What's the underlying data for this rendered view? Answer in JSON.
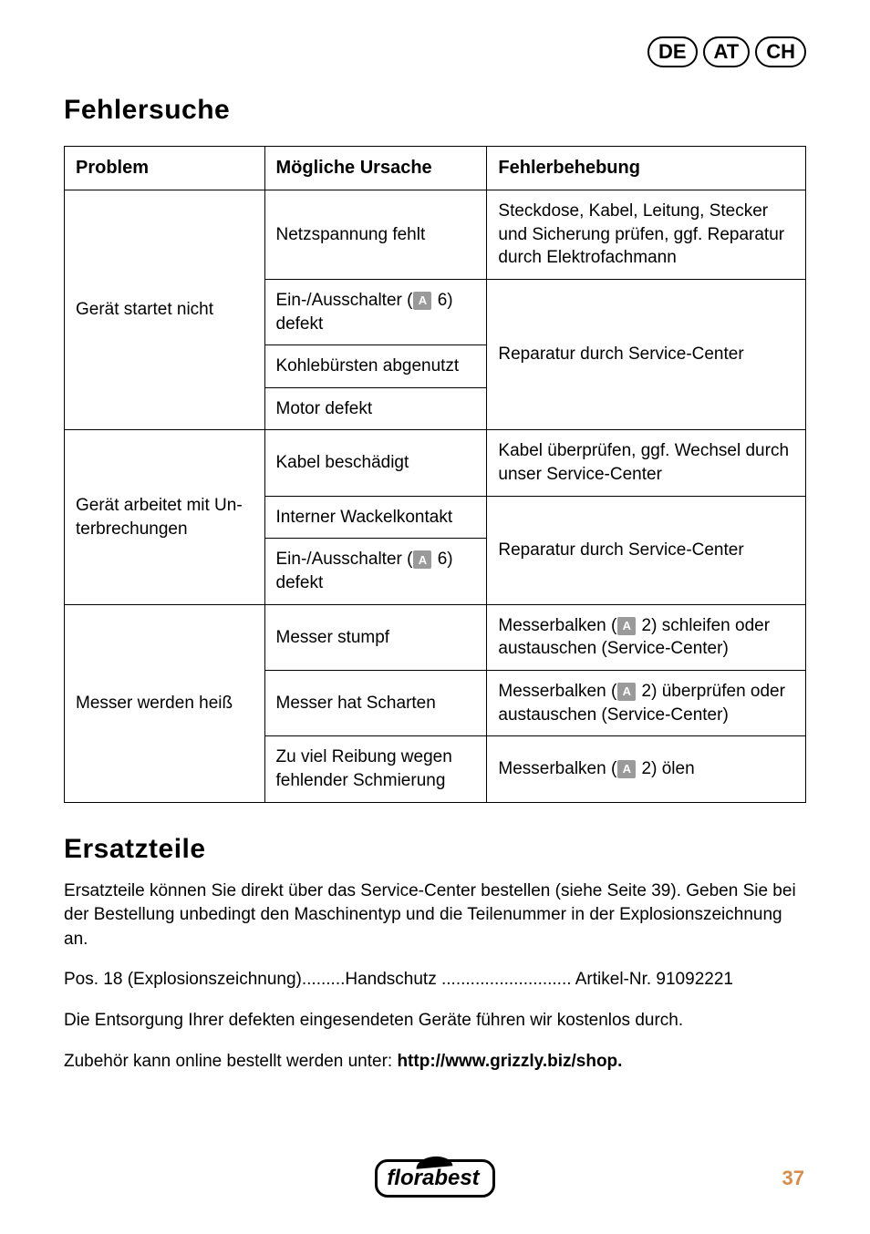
{
  "country_codes": [
    "DE",
    "AT",
    "CH"
  ],
  "section1_title": "Fehlersuche",
  "table": {
    "header": {
      "c1": "Problem",
      "c2": "Mögliche Ursache",
      "c3": "Fehlerbehebung"
    },
    "r1": {
      "problem": "Gerät startet nicht",
      "cause_a": "Netzspannung fehlt",
      "fix_a": "Steckdose, Kabel, Leitung, Stecker und Sicherung prüfen, ggf. Repa­ratur durch Elektrofachmann",
      "cause_b_pre": "Ein-/Ausschalter (",
      "cause_b_post": " 6) defekt",
      "cause_c": "Kohlebürsten abgenutzt",
      "cause_d": "Motor defekt",
      "fix_b": "Reparatur durch Service-Center"
    },
    "r2": {
      "problem": "Gerät arbeitet mit Un­terbrechungen",
      "cause_a": "Kabel beschädigt",
      "fix_a": "Kabel überprüfen, ggf. Wechsel durch unser Service-Center",
      "cause_b": "Interner Wackelkontakt",
      "cause_c_pre": "Ein-/Ausschalter (",
      "cause_c_post": " 6) defekt",
      "fix_b": "Reparatur durch Service-Center"
    },
    "r3": {
      "problem": "Messer werden heiß",
      "cause_a": "Messer stumpf",
      "fix_a_pre": "Messerbalken (",
      "fix_a_post": " 2) schleifen oder austauschen (Service-Center)",
      "cause_b": "Messer hat Scharten",
      "fix_b_pre": "Messerbalken (",
      "fix_b_post": " 2) überprüfen oder austauschen (Service-Center)",
      "cause_c": "Zu viel Reibung wegen fehlender Schmierung",
      "fix_c_pre": "Messerbalken (",
      "fix_c_post": " 2) ölen"
    }
  },
  "icon_letter": "A",
  "section2_title": "Ersatzteile",
  "para1": "Ersatzteile können Sie direkt über das Service-Center bestellen (siehe Seite 39). Geben Sie bei der Bestellung unbedingt den Maschinentyp und die Teilenummer in der Explosionszeichnung an.",
  "para2": "Pos. 18 (Explosionszeichnung).........Handschutz ........................... Artikel-Nr. 91092221",
  "para3": "Die Entsorgung Ihrer defekten eingesendeten Geräte führen wir kostenlos durch.",
  "para4_pre": "Zubehör kann online bestellt werden unter: ",
  "para4_bold": "http://www.grizzly.biz/shop.",
  "logo_text": "florabest",
  "page_number": "37"
}
